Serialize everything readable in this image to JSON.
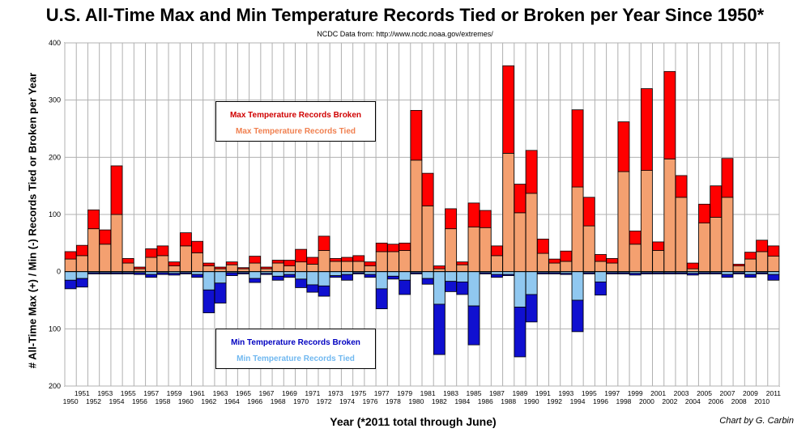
{
  "title": "U.S. All-Time Max and Min Temperature Records Tied or Broken per Year Since 1950*",
  "subtitle": "NCDC Data from: http://www.ncdc.noaa.gov/extremes/",
  "credit": "Chart by G. Carbin",
  "colors": {
    "max_broken": "#ff0000",
    "max_tied": "#f4a070",
    "min_broken": "#1010d0",
    "min_tied": "#90c8f0",
    "legend_max_broken_text": "#d00000",
    "legend_max_tied_text": "#f08050",
    "legend_min_broken_text": "#0000c0",
    "legend_min_tied_text": "#70b8f0",
    "grid": "#b0b0b0"
  },
  "chart_data": {
    "type": "bar",
    "title": "U.S. All-Time Max and Min Temperature Records Tied or Broken per Year Since 1950*",
    "xlabel": "Year (*2011 total through June)",
    "ylabel": "# All-Time Max (+) / Min (-) Records Tied or Broken per Year",
    "ylim": [
      -200,
      400
    ],
    "y_ticks": [
      -200,
      -100,
      0,
      100,
      200,
      300,
      400
    ],
    "y_tick_labels": [
      "200",
      "100",
      "0",
      "100",
      "200",
      "300",
      "400"
    ],
    "grid": true,
    "stacked": true,
    "legend": [
      {
        "position": "upper-left",
        "entries": [
          "Max Temperature Records Broken",
          "Max Temperature Records Tied"
        ]
      },
      {
        "position": "lower-left",
        "entries": [
          "Min Temperature Records Broken",
          "Min Temperature Records Tied"
        ]
      }
    ],
    "categories": [
      "1950",
      "1951",
      "1952",
      "1953",
      "1954",
      "1955",
      "1956",
      "1957",
      "1958",
      "1959",
      "1960",
      "1961",
      "1962",
      "1963",
      "1964",
      "1965",
      "1966",
      "1967",
      "1968",
      "1969",
      "1970",
      "1971",
      "1972",
      "1973",
      "1974",
      "1975",
      "1976",
      "1977",
      "1978",
      "1979",
      "1980",
      "1981",
      "1982",
      "1983",
      "1984",
      "1985",
      "1986",
      "1987",
      "1988",
      "1989",
      "1990",
      "1991",
      "1992",
      "1993",
      "1994",
      "1995",
      "1996",
      "1997",
      "1998",
      "1999",
      "2000",
      "2001",
      "2002",
      "2003",
      "2004",
      "2005",
      "2006",
      "2007",
      "2008",
      "2009",
      "2010",
      "2011"
    ],
    "series": [
      {
        "name": "Max Temperature Records Tied",
        "key": "max_tied",
        "values": [
          22,
          28,
          75,
          48,
          100,
          15,
          5,
          25,
          28,
          10,
          45,
          33,
          10,
          5,
          12,
          5,
          15,
          5,
          15,
          10,
          17,
          13,
          37,
          18,
          18,
          18,
          10,
          35,
          35,
          37,
          195,
          115,
          5,
          75,
          12,
          78,
          77,
          28,
          207,
          103,
          137,
          32,
          15,
          18,
          148,
          80,
          18,
          15,
          175,
          48,
          177,
          37,
          197,
          130,
          5,
          85,
          95,
          130,
          10,
          22,
          35,
          27
        ]
      },
      {
        "name": "Max Temperature Records Broken",
        "key": "max_broken",
        "values": [
          13,
          18,
          33,
          25,
          85,
          8,
          3,
          15,
          17,
          7,
          23,
          20,
          5,
          3,
          5,
          2,
          12,
          3,
          5,
          10,
          22,
          12,
          25,
          5,
          7,
          10,
          7,
          15,
          13,
          13,
          87,
          57,
          5,
          35,
          5,
          42,
          30,
          17,
          153,
          50,
          75,
          25,
          7,
          18,
          135,
          50,
          12,
          8,
          87,
          23,
          143,
          15,
          153,
          38,
          10,
          33,
          55,
          68,
          3,
          12,
          20,
          18
        ]
      },
      {
        "name": "Min Temperature Records Tied",
        "key": "min_tied",
        "values": [
          -15,
          -12,
          -2,
          -2,
          -2,
          -2,
          -2,
          -5,
          -2,
          -3,
          -2,
          -5,
          -32,
          -20,
          -2,
          -2,
          -12,
          -3,
          -8,
          -5,
          -13,
          -23,
          -25,
          -7,
          -5,
          -2,
          -5,
          -30,
          -8,
          -15,
          -2,
          -12,
          -57,
          -17,
          -18,
          -60,
          -2,
          -5,
          -5,
          -62,
          -40,
          -2,
          -2,
          -3,
          -50,
          -2,
          -18,
          -2,
          -2,
          -3,
          -2,
          -2,
          -2,
          -2,
          -3,
          -2,
          -2,
          -5,
          -2,
          -5,
          -2,
          -5
        ]
      },
      {
        "name": "Min Temperature Records Broken",
        "key": "min_broken",
        "values": [
          -15,
          -15,
          -2,
          -2,
          -2,
          -2,
          -3,
          -5,
          -3,
          -3,
          -2,
          -5,
          -40,
          -35,
          -5,
          -2,
          -7,
          -2,
          -7,
          -5,
          -15,
          -13,
          -18,
          -3,
          -10,
          -2,
          -5,
          -35,
          -5,
          -25,
          -2,
          -10,
          -88,
          -18,
          -22,
          -68,
          -2,
          -5,
          -2,
          -87,
          -48,
          -2,
          -2,
          -2,
          -55,
          -2,
          -23,
          -2,
          -2,
          -3,
          -2,
          -2,
          -2,
          -2,
          -3,
          -2,
          -2,
          -5,
          -2,
          -5,
          -2,
          -10
        ]
      }
    ]
  }
}
